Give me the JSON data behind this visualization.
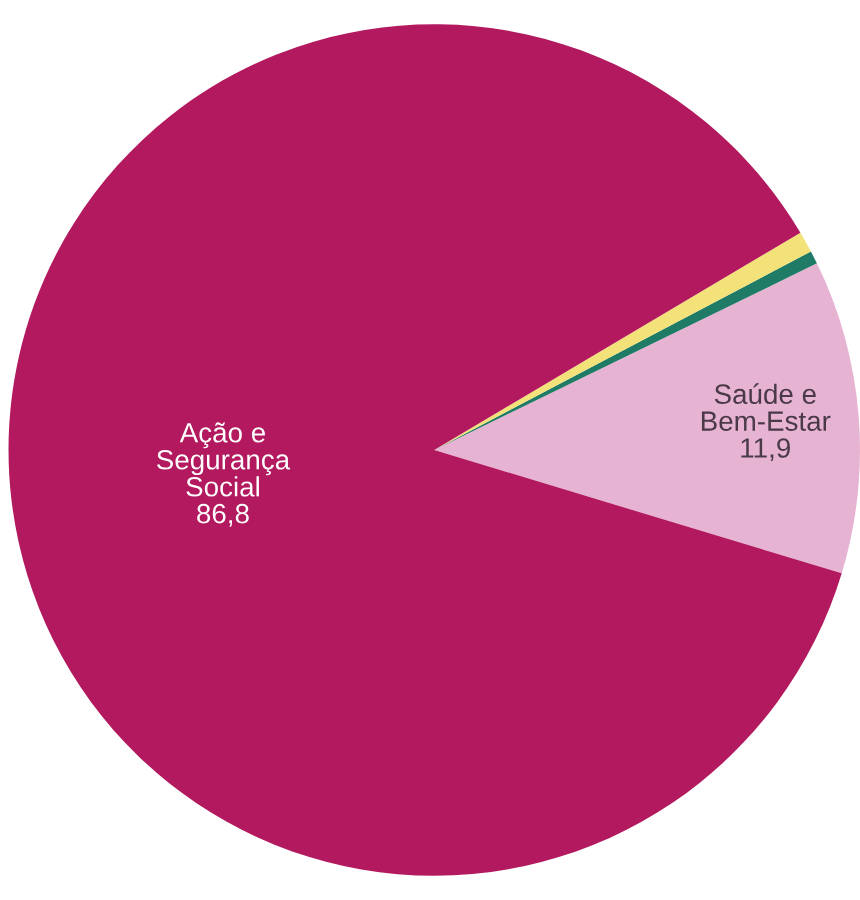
{
  "chart_data": {
    "type": "pie",
    "categories": [
      "Saúde e\nBem-Estar",
      null,
      null,
      "Ação e\nSegurança\nSocial"
    ],
    "values": [
      11.9,
      0.5,
      0.8,
      86.8
    ],
    "value_labels": [
      "11,9",
      null,
      null,
      "86,8"
    ],
    "colors": [
      "#e6b3d2",
      "#1f7a66",
      "#f3e27a",
      "#b3195e"
    ]
  }
}
